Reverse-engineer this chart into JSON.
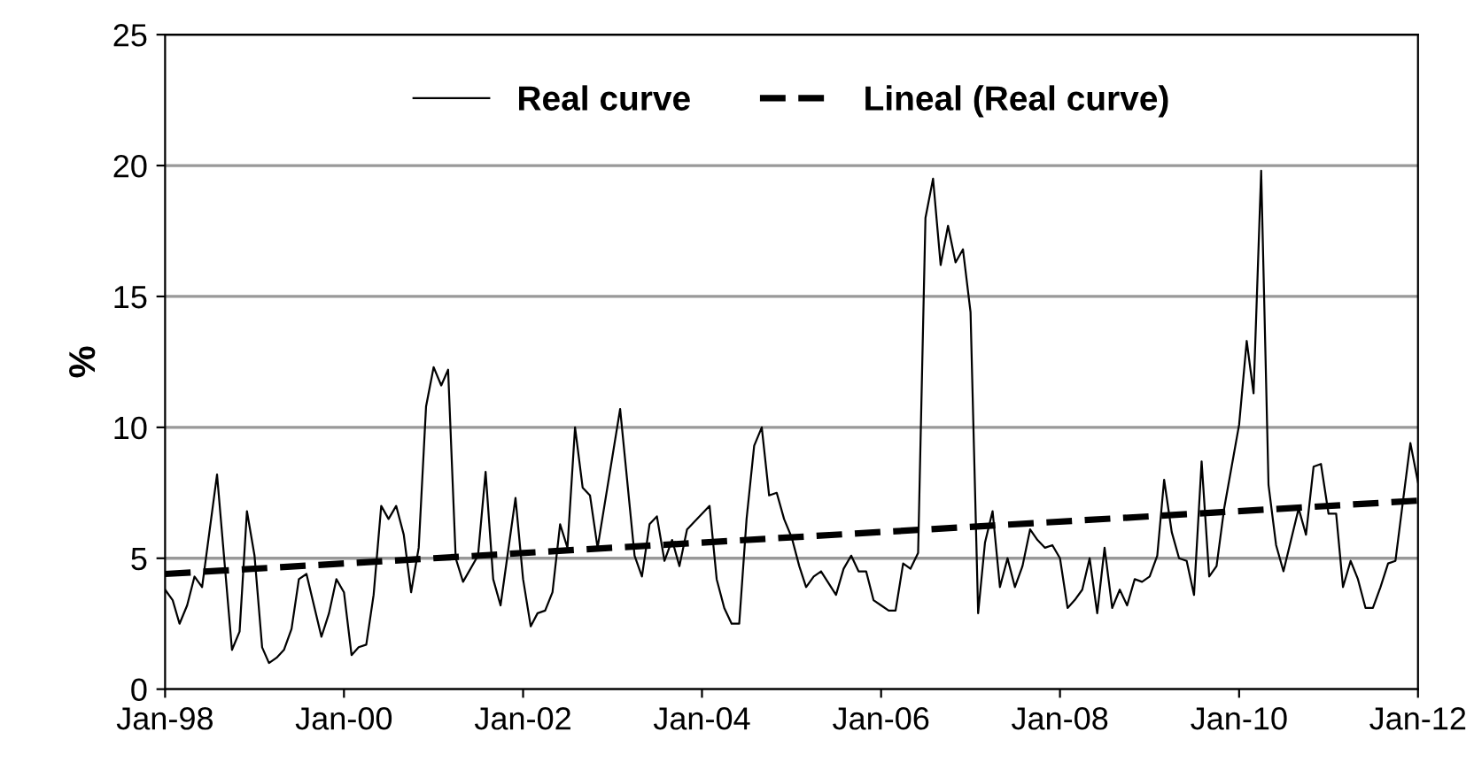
{
  "chart_data": {
    "type": "line",
    "ylabel": "%",
    "series": [
      {
        "name": "Real curve",
        "color": "#000000",
        "line_style": "solid",
        "x": [
          "1998-01",
          "1998-02",
          "1998-03",
          "1998-04",
          "1998-05",
          "1998-06",
          "1998-08",
          "1998-10",
          "1998-11",
          "1998-12",
          "1999-01",
          "1999-02",
          "1999-03",
          "1999-04",
          "1999-05",
          "1999-06",
          "1999-07",
          "1999-08",
          "1999-10",
          "1999-11",
          "1999-12",
          "2000-01",
          "2000-02",
          "2000-03",
          "2000-04",
          "2000-05",
          "2000-06",
          "2000-07",
          "2000-08",
          "2000-09",
          "2000-10",
          "2000-11",
          "2000-12",
          "2001-01",
          "2001-02",
          "2001-03",
          "2001-04",
          "2001-05",
          "2001-07",
          "2001-08",
          "2001-09",
          "2001-10",
          "2001-12",
          "2002-01",
          "2002-02",
          "2002-03",
          "2002-04",
          "2002-05",
          "2002-06",
          "2002-07",
          "2002-08",
          "2002-09",
          "2002-10",
          "2002-11",
          "2003-02",
          "2003-04",
          "2003-05",
          "2003-06",
          "2003-07",
          "2003-08",
          "2003-09",
          "2003-10",
          "2003-11",
          "2004-02",
          "2004-03",
          "2004-04",
          "2004-05",
          "2004-06",
          "2004-07",
          "2004-08",
          "2004-09",
          "2004-10",
          "2004-11",
          "2004-12",
          "2005-01",
          "2005-02",
          "2005-03",
          "2005-04",
          "2005-05",
          "2005-07",
          "2005-08",
          "2005-09",
          "2005-10",
          "2005-11",
          "2005-12",
          "2006-01",
          "2006-02",
          "2006-03",
          "2006-04",
          "2006-05",
          "2006-06",
          "2006-07",
          "2006-08",
          "2006-09",
          "2006-10",
          "2006-11",
          "2006-12",
          "2007-01",
          "2007-02",
          "2007-03",
          "2007-04",
          "2007-05",
          "2007-06",
          "2007-07",
          "2007-08",
          "2007-09",
          "2007-10",
          "2007-11",
          "2007-12",
          "2008-01",
          "2008-02",
          "2008-03",
          "2008-04",
          "2008-05",
          "2008-06",
          "2008-07",
          "2008-08",
          "2008-09",
          "2008-10",
          "2008-11",
          "2008-12",
          "2009-01",
          "2009-02",
          "2009-03",
          "2009-04",
          "2009-05",
          "2009-06",
          "2009-07",
          "2009-08",
          "2009-09",
          "2009-10",
          "2009-11",
          "2010-01",
          "2010-02",
          "2010-03",
          "2010-04",
          "2010-05",
          "2010-06",
          "2010-07",
          "2010-09",
          "2010-10",
          "2010-11",
          "2010-12",
          "2011-01",
          "2011-02",
          "2011-03",
          "2011-04",
          "2011-05",
          "2011-06",
          "2011-07",
          "2011-08",
          "2011-09",
          "2011-10",
          "2011-11",
          "2011-12",
          "2012-01"
        ],
        "values": [
          3.8,
          3.4,
          2.5,
          3.2,
          4.3,
          3.9,
          8.2,
          1.5,
          2.2,
          6.8,
          5.1,
          1.6,
          1.0,
          1.2,
          1.5,
          2.3,
          4.2,
          4.4,
          2.0,
          2.9,
          4.2,
          3.7,
          1.3,
          1.6,
          1.7,
          3.6,
          7.0,
          6.5,
          7.0,
          5.9,
          3.7,
          5.4,
          10.8,
          12.3,
          11.6,
          12.2,
          5.0,
          4.1,
          5.1,
          8.3,
          4.2,
          3.2,
          7.3,
          4.2,
          2.4,
          2.9,
          3.0,
          3.7,
          6.3,
          5.4,
          10.0,
          7.7,
          7.4,
          5.4,
          10.7,
          5.1,
          4.3,
          6.3,
          6.6,
          4.9,
          5.7,
          4.7,
          6.1,
          7.0,
          4.2,
          3.1,
          2.5,
          2.5,
          6.5,
          9.3,
          10.0,
          7.4,
          7.5,
          6.5,
          5.8,
          4.7,
          3.9,
          4.3,
          4.5,
          3.6,
          4.6,
          5.1,
          4.5,
          4.5,
          3.4,
          3.2,
          3.0,
          3.0,
          4.8,
          4.6,
          5.2,
          18.0,
          19.5,
          16.2,
          17.7,
          16.3,
          16.8,
          14.4,
          2.9,
          5.6,
          6.8,
          3.9,
          5.0,
          3.9,
          4.7,
          6.1,
          5.7,
          5.4,
          5.5,
          5.0,
          3.1,
          3.4,
          3.8,
          5.0,
          2.9,
          5.4,
          3.1,
          3.8,
          3.2,
          4.2,
          4.1,
          4.3,
          5.1,
          8.0,
          6.0,
          5.0,
          4.9,
          3.6,
          8.7,
          4.3,
          4.7,
          6.9,
          10.1,
          13.3,
          11.3,
          19.8,
          7.8,
          5.5,
          4.5,
          6.9,
          5.9,
          8.5,
          8.6,
          6.7,
          6.7,
          3.9,
          4.9,
          4.2,
          3.1,
          3.1,
          3.9,
          4.8,
          4.9,
          7.2,
          9.4,
          7.9
        ]
      },
      {
        "name": "Lineal (Real curve)",
        "color": "#000000",
        "line_style": "dashed",
        "x": [
          "1998-01",
          "2012-01"
        ],
        "values": [
          4.4,
          7.2
        ]
      }
    ],
    "xlim": [
      "1998-01",
      "2012-01"
    ],
    "xticks": [
      {
        "value": "1998-01",
        "label": "Jan-98"
      },
      {
        "value": "2000-01",
        "label": "Jan-00"
      },
      {
        "value": "2002-01",
        "label": "Jan-02"
      },
      {
        "value": "2004-01",
        "label": "Jan-04"
      },
      {
        "value": "2006-01",
        "label": "Jan-06"
      },
      {
        "value": "2008-01",
        "label": "Jan-08"
      },
      {
        "value": "2010-01",
        "label": "Jan-10"
      },
      {
        "value": "2012-01",
        "label": "Jan-12"
      }
    ],
    "ylim": [
      0,
      25
    ],
    "yticks": [
      0,
      5,
      10,
      15,
      20,
      25
    ],
    "grid": "y",
    "legend": "top",
    "marker": "none"
  }
}
